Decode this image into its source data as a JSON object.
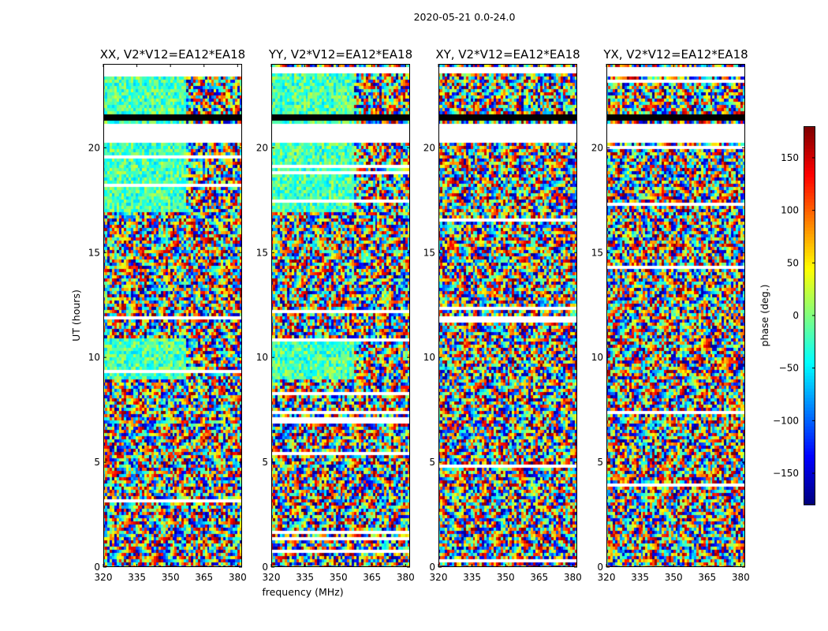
{
  "figure": {
    "suptitle": "2020-05-21 0.0-24.0"
  },
  "chart_data": {
    "type": "heatmap",
    "panels": [
      {
        "title": "XX, V2*V12=EA12*EA18",
        "polarization": "XX",
        "show_ylabel": true,
        "show_xlabel": false,
        "low_freq_coherent": true
      },
      {
        "title": "YY, V2*V12=EA12*EA18",
        "polarization": "YY",
        "show_ylabel": false,
        "show_xlabel": true,
        "low_freq_coherent": true
      },
      {
        "title": "XY, V2*V12=EA12*EA18",
        "polarization": "XY",
        "show_ylabel": false,
        "show_xlabel": false,
        "low_freq_coherent": false
      },
      {
        "title": "YX, V2*V12=EA12*EA18",
        "polarization": "YX",
        "show_ylabel": false,
        "show_xlabel": false,
        "low_freq_coherent": false
      }
    ],
    "xlabel": "frequency (MHz)",
    "ylabel": "UT (hours)",
    "xlim": [
      320,
      382
    ],
    "ylim": [
      0,
      24
    ],
    "xticks": [
      320,
      335,
      350,
      365,
      380
    ],
    "xtick_labels": [
      "320",
      "335",
      "350",
      "365",
      "380"
    ],
    "yticks": [
      0,
      5,
      10,
      15,
      20
    ],
    "ytick_labels": [
      "0",
      "5",
      "10",
      "15",
      "20"
    ],
    "colorbar": {
      "label": "phase (deg.)",
      "colormap": "jet",
      "vmin": -180,
      "vmax": 180,
      "ticks": [
        -150,
        -100,
        -50,
        0,
        50,
        100,
        150
      ],
      "tick_labels": [
        "−150",
        "−100",
        "−50",
        "0",
        "50",
        "100",
        "150"
      ]
    },
    "flagged_time_ranges_hours": [
      [
        20.3,
        21.1
      ],
      [
        23.6,
        23.9
      ]
    ],
    "black_time_ranges_hours": [
      [
        21.3,
        21.55
      ]
    ]
  }
}
